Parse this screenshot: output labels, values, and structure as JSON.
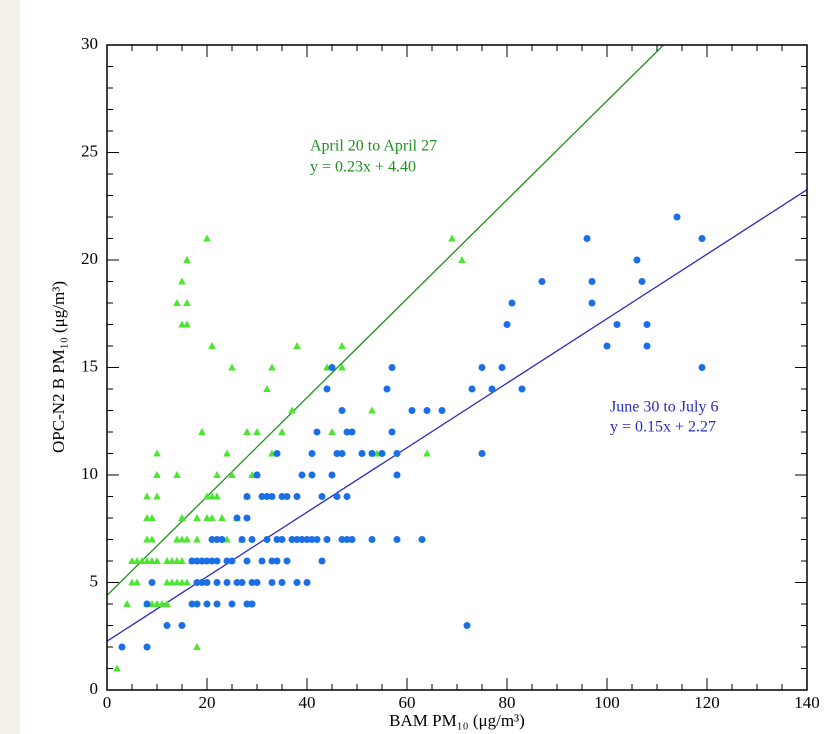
{
  "chart_data": {
    "type": "scatter",
    "xlabel": "BAM PM₁₀ (μg/m³)",
    "ylabel": "OPC-N2  B  PM₁₀ (μg/m³)",
    "xlim": [
      0,
      140
    ],
    "ylim": [
      0,
      30
    ],
    "xticks": [
      0,
      20,
      40,
      60,
      80,
      100,
      120,
      140
    ],
    "yticks": [
      0,
      5,
      10,
      15,
      20,
      25,
      30
    ],
    "xminorticks": [
      5,
      10,
      15,
      25,
      30,
      35,
      45,
      50,
      55,
      65,
      70,
      75,
      85,
      90,
      95,
      105,
      110,
      115,
      125,
      130,
      135
    ],
    "yminorticks": [
      1,
      2,
      3,
      4,
      6,
      7,
      8,
      9,
      11,
      12,
      13,
      14,
      16,
      17,
      18,
      19,
      21,
      22,
      23,
      24,
      26,
      27,
      28,
      29
    ],
    "series": [
      {
        "color": "#4be62e",
        "marker": "triangle",
        "x": [
          2,
          4,
          5,
          6,
          5,
          6,
          7,
          8,
          9,
          10,
          8,
          8,
          9,
          8,
          9,
          10,
          10,
          10,
          9,
          10,
          11,
          12,
          8,
          12,
          13,
          14,
          15,
          12,
          13,
          14,
          15,
          16,
          14,
          15,
          14,
          15,
          16,
          17,
          18,
          18,
          19,
          18,
          14,
          15,
          16,
          16,
          15,
          16,
          19,
          20,
          21,
          20,
          21,
          22,
          22,
          23,
          24,
          24,
          25,
          25,
          26,
          27,
          28,
          28,
          29,
          30,
          30,
          32,
          33,
          33,
          35,
          37,
          38,
          45,
          47,
          47,
          53,
          54,
          64,
          69,
          71,
          44,
          20,
          21
        ],
        "values": [
          1,
          4,
          5,
          5,
          6,
          6,
          6,
          6,
          6,
          6,
          9,
          8,
          8,
          7,
          7,
          11,
          10,
          9,
          4,
          4,
          4,
          4,
          4,
          6,
          6,
          6,
          6,
          5,
          5,
          5,
          5,
          5,
          7,
          7,
          10,
          8,
          7,
          6,
          7,
          8,
          6,
          2,
          18,
          19,
          20,
          18,
          17,
          17,
          12,
          21,
          16,
          9,
          9,
          9,
          10,
          8,
          11,
          7,
          15,
          10,
          8,
          7,
          9,
          12,
          10,
          12,
          10,
          14,
          15,
          11,
          12,
          13,
          16,
          12,
          16,
          15,
          13,
          11,
          11,
          21,
          20,
          15,
          8,
          8
        ]
      },
      {
        "color": "#1a6fe6",
        "marker": "circle",
        "x": [
          3,
          8,
          8,
          9,
          12,
          15,
          17,
          18,
          18,
          17,
          18,
          19,
          19,
          20,
          20,
          20,
          21,
          22,
          21,
          22,
          22,
          22,
          23,
          24,
          24,
          25,
          25,
          26,
          26,
          27,
          27,
          28,
          28,
          28,
          28,
          29,
          29,
          29,
          30,
          30,
          31,
          31,
          32,
          32,
          33,
          33,
          33,
          34,
          34,
          34,
          35,
          35,
          35,
          36,
          36,
          37,
          38,
          38,
          38,
          39,
          39,
          40,
          40,
          41,
          41,
          41,
          42,
          42,
          43,
          43,
          44,
          44,
          45,
          45,
          46,
          46,
          47,
          47,
          47,
          48,
          48,
          48,
          49,
          49,
          51,
          53,
          53,
          55,
          56,
          57,
          57,
          58,
          58,
          58,
          61,
          63,
          64,
          67,
          72,
          73,
          75,
          75,
          77,
          79,
          80,
          81,
          83,
          87,
          96,
          97,
          97,
          100,
          102,
          106,
          107,
          108,
          108,
          114,
          119,
          119
        ],
        "values": [
          2,
          2,
          4,
          5,
          3,
          3,
          4,
          4,
          5,
          6,
          6,
          6,
          5,
          4,
          5,
          6,
          7,
          7,
          6,
          6,
          5,
          4,
          7,
          5,
          6,
          6,
          4,
          5,
          8,
          7,
          5,
          9,
          8,
          6,
          4,
          4,
          5,
          7,
          10,
          5,
          9,
          6,
          9,
          7,
          9,
          6,
          5,
          11,
          7,
          6,
          9,
          7,
          5,
          9,
          6,
          7,
          9,
          7,
          5,
          10,
          7,
          5,
          7,
          11,
          10,
          7,
          12,
          7,
          9,
          6,
          14,
          7,
          15,
          10,
          11,
          9,
          11,
          13,
          7,
          7,
          12,
          9,
          7,
          12,
          11,
          7,
          11,
          11,
          14,
          15,
          12,
          11,
          10,
          7,
          13,
          7,
          13,
          13,
          3,
          14,
          15,
          11,
          14,
          15,
          17,
          18,
          14,
          19,
          21,
          19,
          18,
          16,
          17,
          20,
          19,
          17,
          16,
          22,
          21,
          15
        ]
      }
    ],
    "fit_lines": [
      {
        "color": "#1f8f1f",
        "x": [
          0,
          111.3
        ],
        "y": [
          4.4,
          30
        ]
      },
      {
        "color": "#2a2ac0",
        "x": [
          0,
          140
        ],
        "y": [
          2.27,
          23.27
        ]
      }
    ],
    "annotations": [
      {
        "text": "April 20 to April 27",
        "color": "#1f8f1f"
      },
      {
        "text": "y = 0.23x + 4.40",
        "color": "#1f8f1f"
      },
      {
        "text": "June 30 to July 6",
        "color": "#2a2ac0"
      },
      {
        "text": "y = 0.15x + 2.27",
        "color": "#2a2ac0"
      }
    ]
  }
}
